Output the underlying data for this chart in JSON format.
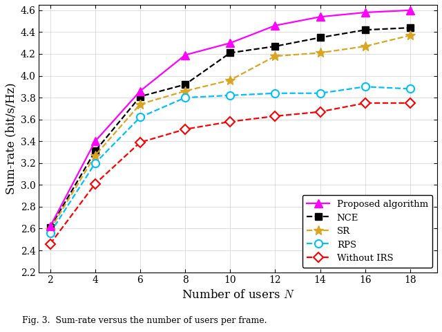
{
  "x": [
    2,
    4,
    6,
    8,
    10,
    12,
    14,
    16,
    18
  ],
  "proposed": [
    2.62,
    3.4,
    3.86,
    4.19,
    4.3,
    4.46,
    4.54,
    4.58,
    4.6
  ],
  "nce": [
    2.61,
    3.31,
    3.81,
    3.92,
    4.21,
    4.27,
    4.35,
    4.42,
    4.44
  ],
  "sr": [
    2.59,
    3.27,
    3.74,
    3.86,
    3.96,
    4.18,
    4.21,
    4.27,
    4.37
  ],
  "rps": [
    2.56,
    3.2,
    3.62,
    3.8,
    3.82,
    3.84,
    3.84,
    3.9,
    3.88
  ],
  "no_irs": [
    2.46,
    3.01,
    3.39,
    3.51,
    3.58,
    3.63,
    3.67,
    3.75,
    3.75
  ],
  "proposed_color": "#FF00FF",
  "nce_color": "#000000",
  "sr_color": "#DAA520",
  "rps_color": "#00BFFF",
  "no_irs_color": "#FF0000",
  "xlabel": "Number of users $N$",
  "ylabel": "Sum-rate (bit/s/Hz)",
  "xlim": [
    1.5,
    19.2
  ],
  "ylim": [
    2.2,
    4.65
  ],
  "xticks": [
    2,
    4,
    6,
    8,
    10,
    12,
    14,
    16,
    18
  ],
  "yticks": [
    2.2,
    2.4,
    2.6,
    2.8,
    3.0,
    3.2,
    3.4,
    3.6,
    3.8,
    4.0,
    4.2,
    4.4,
    4.6
  ],
  "caption": "Fig. 3.  Sum-rate versus the number of users per frame."
}
